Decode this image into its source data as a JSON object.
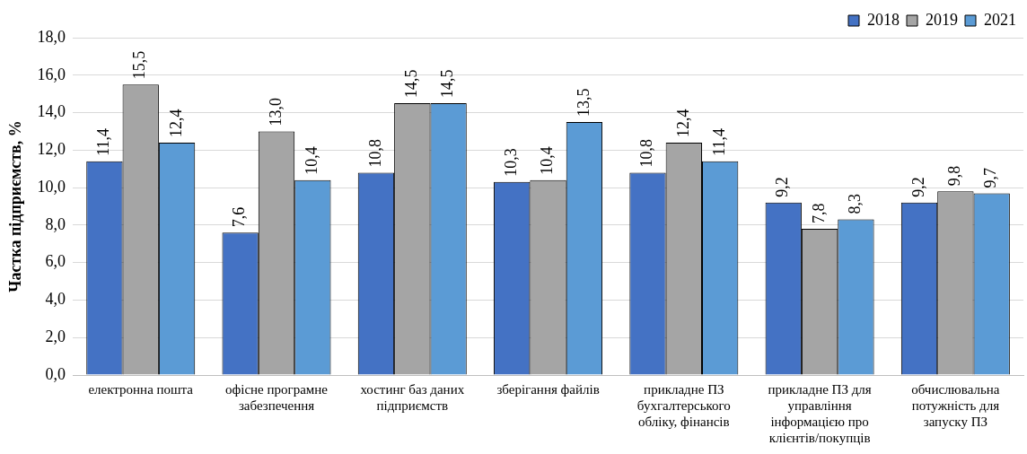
{
  "chart_data": {
    "type": "bar",
    "ylabel": "Частка підприємств, %",
    "categories": [
      "електронна пошта",
      "офісне програмне забезпечення",
      "хостинг баз даних підприємств",
      "зберігання файлів",
      "прикладне ПЗ бухгалтерського обліку, фінансів",
      "прикладне ПЗ для управління інформацією про клієнтів/покупців",
      "обчислювальна потужність для запуску ПЗ"
    ],
    "series": [
      {
        "name": "2018",
        "color": "#4472c4",
        "values": [
          11.4,
          7.6,
          10.8,
          10.3,
          10.8,
          9.2,
          9.2
        ],
        "value_labels": [
          "11,4",
          "7,6",
          "10,8",
          "10,3",
          "10,8",
          "9,2",
          "9,2"
        ]
      },
      {
        "name": "2019",
        "color": "#a5a5a5",
        "values": [
          15.5,
          13.0,
          14.5,
          10.4,
          12.4,
          7.8,
          9.8
        ],
        "value_labels": [
          "15,5",
          "13,0",
          "14,5",
          "10,4",
          "12,4",
          "7,8",
          "9,8"
        ]
      },
      {
        "name": "2021",
        "color": "#5b9bd5",
        "values": [
          12.4,
          10.4,
          14.5,
          13.5,
          11.4,
          8.3,
          9.7
        ],
        "value_labels": [
          "12,4",
          "10,4",
          "14,5",
          "13,5",
          "11,4",
          "8,3",
          "9,7"
        ]
      }
    ],
    "ylim": [
      0,
      18
    ],
    "yticks": [
      {
        "value": 0,
        "label": "0,0"
      },
      {
        "value": 2,
        "label": "2,0"
      },
      {
        "value": 4,
        "label": "4,0"
      },
      {
        "value": 6,
        "label": "6,0"
      },
      {
        "value": 8,
        "label": "8,0"
      },
      {
        "value": 10,
        "label": "10,0"
      },
      {
        "value": 12,
        "label": "12,0"
      },
      {
        "value": 14,
        "label": "14,0"
      },
      {
        "value": 16,
        "label": "16,0"
      },
      {
        "value": 18,
        "label": "18,0"
      }
    ],
    "grid": "y",
    "legend": "top right"
  }
}
